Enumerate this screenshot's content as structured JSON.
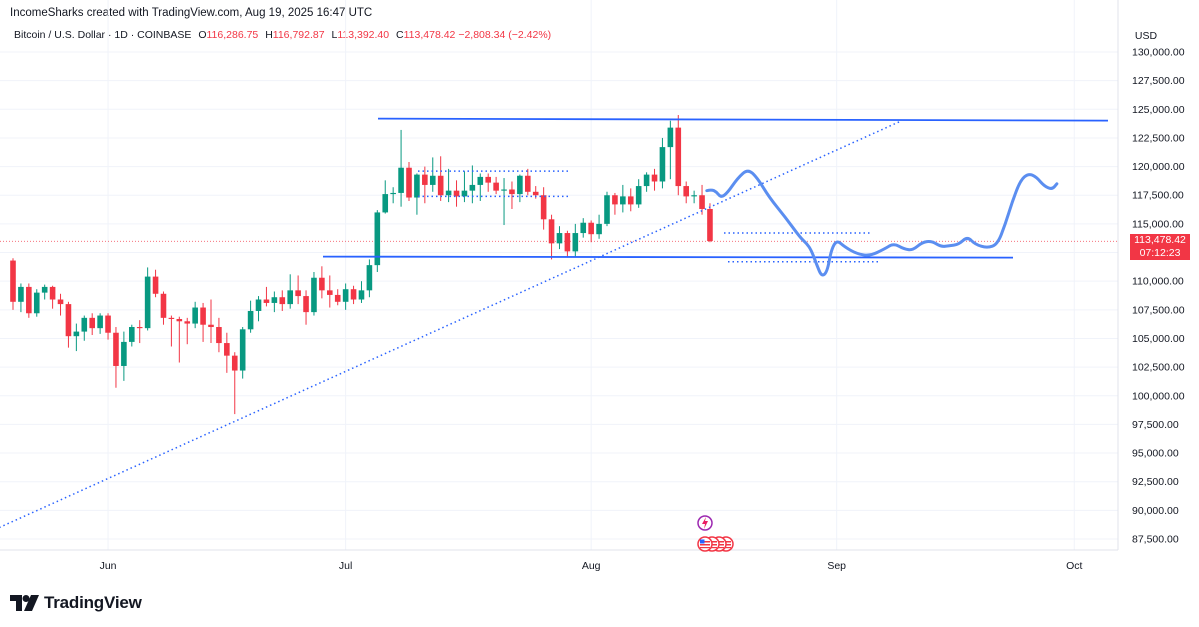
{
  "header": {
    "attribution": "IncomeSharks created with TradingView.com, Aug 19, 2025 16:47 UTC"
  },
  "legend": {
    "symbol": "Bitcoin / U.S. Dollar · 1D · COINBASE",
    "open_label": "O",
    "open_value": "116,286.75",
    "high_label": "H",
    "high_value": "116,792.87",
    "low_label": "L",
    "low_value": "113,392.40",
    "close_label": "C",
    "close_value": "113,478.42",
    "change": "−2,808.34 (−2.42%)"
  },
  "price_tag": {
    "price": "113,478.42",
    "countdown": "07:12:23"
  },
  "brand": {
    "name": "TradingView"
  },
  "colors": {
    "up": "#089981",
    "down": "#f23645",
    "line": "#2962ff",
    "forecast": "#5b8ef0",
    "grid": "#f0f3fa"
  },
  "chart_data": {
    "type": "candlestick",
    "currency": "USD",
    "y_ticks": [
      87500,
      90000,
      92500,
      95000,
      97500,
      100000,
      102500,
      105000,
      107500,
      110000,
      112500,
      115000,
      117500,
      120000,
      122500,
      125000,
      127500,
      130000
    ],
    "y_tick_labels": [
      "87,500.00",
      "90,000.00",
      "92,500.00",
      "95,000.00",
      "97,500.00",
      "100,000.00",
      "102,500.00",
      "105,000.00",
      "107,500.00",
      "110,000.00",
      "112,500.00",
      "115,000.00",
      "117,500.00",
      "120,000.00",
      "122,500.00",
      "125,000.00",
      "127,500.00",
      "130,000.00"
    ],
    "x_labels": [
      {
        "label": "Jun",
        "day": 12
      },
      {
        "label": "Jul",
        "day": 42
      },
      {
        "label": "Aug",
        "day": 73
      },
      {
        "label": "Sep",
        "day": 104
      },
      {
        "label": "Oct",
        "day": 134
      }
    ],
    "last_price": 113478.42,
    "candles": [
      [
        111800,
        112000,
        107500,
        108200
      ],
      [
        108200,
        109800,
        107300,
        109500
      ],
      [
        109500,
        109800,
        106800,
        107200
      ],
      [
        107200,
        109300,
        106900,
        109000
      ],
      [
        109000,
        109700,
        108400,
        109500
      ],
      [
        109500,
        109600,
        107600,
        108400
      ],
      [
        108400,
        108900,
        107000,
        108000
      ],
      [
        108000,
        108200,
        104200,
        105200
      ],
      [
        105200,
        106300,
        103900,
        105600
      ],
      [
        105600,
        107000,
        104800,
        106800
      ],
      [
        106800,
        107200,
        105300,
        105900
      ],
      [
        105900,
        107200,
        105400,
        107000
      ],
      [
        107000,
        107200,
        104900,
        105500
      ],
      [
        105500,
        106000,
        100700,
        102600
      ],
      [
        102600,
        105600,
        101300,
        104700
      ],
      [
        104700,
        106200,
        104300,
        106000
      ],
      [
        106000,
        106600,
        104600,
        105900
      ],
      [
        105900,
        111200,
        105700,
        110400
      ],
      [
        110400,
        111000,
        108600,
        108900
      ],
      [
        108900,
        109100,
        106200,
        106800
      ],
      [
        106800,
        107000,
        104300,
        106700
      ],
      [
        106700,
        106900,
        102900,
        106500
      ],
      [
        106500,
        106800,
        104500,
        106300
      ],
      [
        106300,
        108200,
        105900,
        107700
      ],
      [
        107700,
        108100,
        104700,
        106200
      ],
      [
        106200,
        108400,
        104600,
        106000
      ],
      [
        106000,
        106800,
        103800,
        104600
      ],
      [
        104600,
        105500,
        102000,
        103500
      ],
      [
        103500,
        103800,
        98400,
        102200
      ],
      [
        102200,
        106000,
        101500,
        105800
      ],
      [
        105800,
        108300,
        105500,
        107400
      ],
      [
        107400,
        108700,
        106500,
        108400
      ],
      [
        108400,
        109500,
        107800,
        108100
      ],
      [
        108100,
        109100,
        107300,
        108600
      ],
      [
        108600,
        109200,
        107400,
        108000
      ],
      [
        108000,
        110600,
        107600,
        109200
      ],
      [
        109200,
        110500,
        108000,
        108700
      ],
      [
        108700,
        109200,
        106200,
        107300
      ],
      [
        107300,
        110800,
        107000,
        110300
      ],
      [
        110300,
        111300,
        108500,
        109200
      ],
      [
        109200,
        110500,
        107700,
        108800
      ],
      [
        108800,
        109300,
        107900,
        108200
      ],
      [
        108200,
        109800,
        107500,
        109300
      ],
      [
        109300,
        109600,
        108000,
        108400
      ],
      [
        108400,
        110000,
        108100,
        109200
      ],
      [
        109200,
        111900,
        108600,
        111400
      ],
      [
        111400,
        116200,
        110800,
        116000
      ],
      [
        116000,
        118800,
        115900,
        117600
      ],
      [
        117600,
        118200,
        116800,
        117700
      ],
      [
        117700,
        123200,
        116500,
        119900
      ],
      [
        119900,
        120400,
        117000,
        117300
      ],
      [
        117300,
        119400,
        115800,
        119300
      ],
      [
        119300,
        120000,
        116800,
        118400
      ],
      [
        118400,
        120800,
        117800,
        119200
      ],
      [
        119200,
        120900,
        117000,
        117500
      ],
      [
        117500,
        119800,
        116900,
        117900
      ],
      [
        117900,
        118800,
        116500,
        117400
      ],
      [
        117400,
        119600,
        116900,
        117900
      ],
      [
        117900,
        120100,
        116800,
        118400
      ],
      [
        118400,
        119400,
        117000,
        119100
      ],
      [
        119100,
        119400,
        117800,
        118600
      ],
      [
        118600,
        119100,
        117600,
        117900
      ],
      [
        117900,
        119000,
        114900,
        118000
      ],
      [
        118000,
        118700,
        116300,
        117600
      ],
      [
        117600,
        119300,
        116900,
        119200
      ],
      [
        119200,
        119800,
        117500,
        117800
      ],
      [
        117800,
        118300,
        117200,
        117500
      ],
      [
        117500,
        118200,
        114500,
        115400
      ],
      [
        115400,
        115800,
        111900,
        113300
      ],
      [
        113300,
        114800,
        112800,
        114200
      ],
      [
        114200,
        114400,
        112100,
        112600
      ],
      [
        112600,
        115000,
        112100,
        114200
      ],
      [
        114200,
        115500,
        113800,
        115100
      ],
      [
        115100,
        115300,
        113400,
        114100
      ],
      [
        114100,
        115800,
        113700,
        115000
      ],
      [
        115000,
        117800,
        114800,
        117500
      ],
      [
        117500,
        117700,
        115800,
        116700
      ],
      [
        116700,
        118400,
        116000,
        117400
      ],
      [
        117400,
        118100,
        116100,
        116700
      ],
      [
        116700,
        118900,
        116400,
        118300
      ],
      [
        118300,
        119500,
        117800,
        119300
      ],
      [
        119300,
        119800,
        117900,
        118700
      ],
      [
        118700,
        122500,
        118100,
        121700
      ],
      [
        121700,
        124000,
        118900,
        123400
      ],
      [
        123400,
        124500,
        117500,
        118300
      ],
      [
        118300,
        118700,
        116800,
        117400
      ],
      [
        117400,
        117900,
        116800,
        117500
      ],
      [
        117500,
        118400,
        115800,
        116300
      ],
      [
        116300,
        116800,
        113400,
        113500
      ]
    ],
    "levels": [
      {
        "name": "resistance",
        "value": 124100
      },
      {
        "name": "support",
        "value": 112100
      },
      {
        "name": "upper-range",
        "value": 119600
      },
      {
        "name": "lower-range",
        "value": 117400
      },
      {
        "name": "target-upper",
        "value": 114200
      },
      {
        "name": "target-lower",
        "value": 111700
      }
    ],
    "trendline": {
      "from": {
        "day": -3,
        "price": 88500
      },
      "to": {
        "day": 112,
        "price": 123900
      }
    },
    "forecast_path": [
      [
        87.6,
        117900
      ],
      [
        88.2,
        118000
      ],
      [
        88.8,
        117800
      ],
      [
        89.4,
        117300
      ],
      [
        90.2,
        117700
      ],
      [
        91.5,
        119000
      ],
      [
        92.8,
        119800
      ],
      [
        94,
        119000
      ],
      [
        95.5,
        117300
      ],
      [
        97.5,
        115600
      ],
      [
        99.4,
        113800
      ],
      [
        100.2,
        113300
      ],
      [
        100.8,
        112700
      ],
      [
        101.5,
        111400
      ],
      [
        102.1,
        110400
      ],
      [
        102.8,
        110800
      ],
      [
        103.3,
        112700
      ],
      [
        104.0,
        113600
      ],
      [
        105.0,
        113000
      ],
      [
        106.5,
        112400
      ],
      [
        108.2,
        112200
      ],
      [
        110.0,
        112800
      ],
      [
        111.2,
        113300
      ],
      [
        112.5,
        112800
      ],
      [
        113.6,
        112700
      ],
      [
        114.8,
        113400
      ],
      [
        116.0,
        113500
      ],
      [
        117.2,
        113000
      ],
      [
        118.2,
        113100
      ],
      [
        119.4,
        113200
      ],
      [
        120.5,
        113900
      ],
      [
        121.5,
        113200
      ],
      [
        123.0,
        112900
      ],
      [
        124.3,
        113200
      ],
      [
        125.3,
        115000
      ],
      [
        126.2,
        117000
      ],
      [
        127.2,
        118800
      ],
      [
        128.2,
        119400
      ],
      [
        129.2,
        119100
      ],
      [
        130.2,
        118300
      ],
      [
        131.2,
        118000
      ],
      [
        131.8,
        118500
      ]
    ],
    "events": [
      {
        "name": "Fed event",
        "day": 87.5
      }
    ]
  }
}
